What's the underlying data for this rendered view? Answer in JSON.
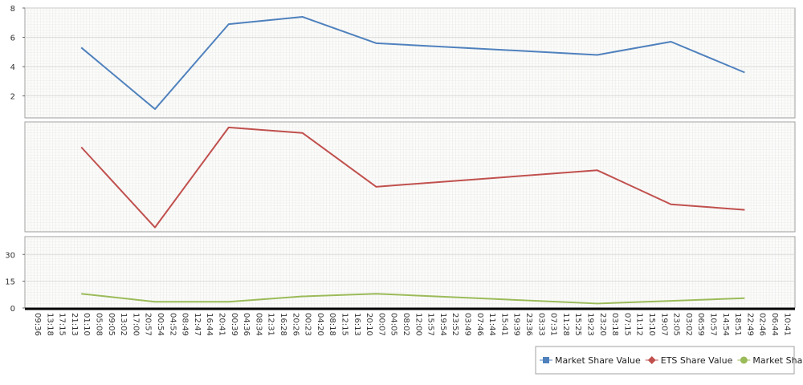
{
  "chart_data": {
    "type": "line",
    "grid": true,
    "legend_position": "bottom-right",
    "colors": {
      "market_share_value": "#4f81bd",
      "ets_share_value": "#c0504d",
      "market_share": "#9bbb59",
      "grid_minor": "#ececec",
      "grid_major": "#d4d4d4",
      "pane_bg": "#fcfcfa",
      "pane_border": "#a0a0a0",
      "axis": "#000000"
    },
    "x_labels": [
      "09:36",
      "13:18",
      "17:15",
      "21:13",
      "01:10",
      "05:08",
      "09:05",
      "13:02",
      "17:00",
      "20:57",
      "00:54",
      "04:52",
      "08:49",
      "12:47",
      "16:44",
      "20:41",
      "00:39",
      "04:36",
      "08:34",
      "12:31",
      "16:28",
      "20:26",
      "00:23",
      "04:20",
      "08:18",
      "12:15",
      "16:13",
      "20:10",
      "00:07",
      "04:05",
      "08:02",
      "12:00",
      "15:57",
      "19:54",
      "23:52",
      "03:49",
      "07:46",
      "11:44",
      "15:41",
      "19:39",
      "23:36",
      "03:33",
      "07:31",
      "11:28",
      "15:25",
      "19:23",
      "23:20",
      "03:18",
      "07:15",
      "11:12",
      "15:10",
      "19:07",
      "23:05",
      "03:02",
      "06:59",
      "10:57",
      "14:54",
      "18:51",
      "22:49",
      "02:46",
      "06:44",
      "10:41"
    ],
    "panes": [
      {
        "series": "Market Share Value",
        "color_key": "market_share_value",
        "ylim": [
          0.5,
          8
        ],
        "yticks": [
          "2",
          "4",
          "6",
          "8"
        ],
        "ytick_values": [
          2,
          4,
          6,
          8
        ],
        "points": [
          {
            "x": "01:10",
            "y": 5.3
          },
          {
            "x": "00:54",
            "y": 1.1
          },
          {
            "x": "00:39",
            "y": 6.9
          },
          {
            "x": "00:23",
            "y": 7.4
          },
          {
            "x": "00:07",
            "y": 5.6
          },
          {
            "x": "23:20",
            "y": 4.8
          },
          {
            "x": "23:05",
            "y": 5.7
          },
          {
            "x": "22:49",
            "y": 3.6
          }
        ]
      },
      {
        "series": "ETS Share Value",
        "color_key": "ets_share_value",
        "ylim": [
          0,
          1
        ],
        "yticks": [],
        "ytick_values": [],
        "points": [
          {
            "x": "01:10",
            "y": 0.77
          },
          {
            "x": "00:54",
            "y": 0.04
          },
          {
            "x": "00:39",
            "y": 0.95
          },
          {
            "x": "00:23",
            "y": 0.9
          },
          {
            "x": "00:07",
            "y": 0.41
          },
          {
            "x": "23:20",
            "y": 0.56
          },
          {
            "x": "23:05",
            "y": 0.25
          },
          {
            "x": "22:49",
            "y": 0.2
          }
        ]
      },
      {
        "series": "Market Share",
        "color_key": "market_share",
        "ylim": [
          0,
          40
        ],
        "yticks": [
          "0",
          "15",
          "30"
        ],
        "ytick_values": [
          0,
          15,
          30
        ],
        "points": [
          {
            "x": "01:10",
            "y": 8
          },
          {
            "x": "00:54",
            "y": 3.5
          },
          {
            "x": "00:39",
            "y": 3.5
          },
          {
            "x": "00:23",
            "y": 6.5
          },
          {
            "x": "00:07",
            "y": 8
          },
          {
            "x": "23:20",
            "y": 2.5
          },
          {
            "x": "23:05",
            "y": 4
          },
          {
            "x": "22:49",
            "y": 5.5
          }
        ]
      }
    ],
    "legend": [
      {
        "label": "Market Share Value",
        "marker": "square",
        "color_key": "market_share_value"
      },
      {
        "label": "ETS Share Value",
        "marker": "diamond",
        "color_key": "ets_share_value"
      },
      {
        "label": "Market Share",
        "marker": "circle",
        "color_key": "market_share"
      }
    ]
  }
}
